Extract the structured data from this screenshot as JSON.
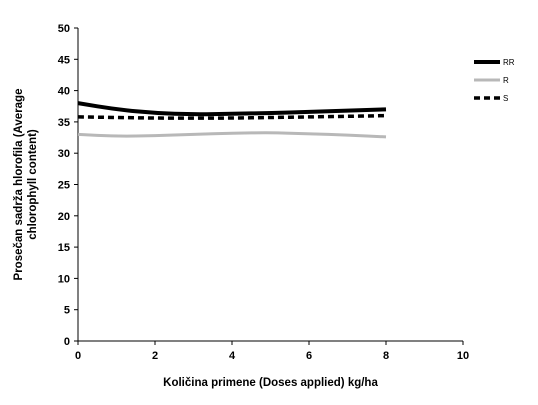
{
  "chart_data": {
    "type": "line",
    "title": "",
    "xlabel": "Količina primene (Doses applied) kg/ha",
    "ylabel_line1": "Prosečan sadržа hlorofila (Average",
    "ylabel_line2": "chlorophyll content)",
    "xlim": [
      0,
      10
    ],
    "ylim": [
      0,
      50
    ],
    "x_ticks": [
      "0",
      "2",
      "4",
      "6",
      "8",
      "10"
    ],
    "y_ticks": [
      "0",
      "5",
      "10",
      "15",
      "20",
      "25",
      "30",
      "35",
      "40",
      "45",
      "50"
    ],
    "grid": false,
    "legend_position": "right",
    "series": [
      {
        "name": "RR",
        "color": "#000000",
        "style": "solid-thick",
        "points": [
          [
            0,
            38.0
          ],
          [
            1,
            37.0
          ],
          [
            2,
            36.4
          ],
          [
            3,
            36.2
          ],
          [
            4,
            36.3
          ],
          [
            5,
            36.4
          ],
          [
            6,
            36.6
          ],
          [
            7,
            36.8
          ],
          [
            8,
            37.0
          ]
        ]
      },
      {
        "name": "R",
        "color": "#b8b8b8",
        "style": "solid-gray",
        "points": [
          [
            0,
            33.0
          ],
          [
            1,
            32.7
          ],
          [
            2,
            32.8
          ],
          [
            3,
            33.0
          ],
          [
            4,
            33.2
          ],
          [
            5,
            33.3
          ],
          [
            6,
            33.1
          ],
          [
            7,
            32.9
          ],
          [
            8,
            32.6
          ]
        ]
      },
      {
        "name": "S",
        "color": "#000000",
        "style": "dashed",
        "points": [
          [
            0,
            35.8
          ],
          [
            1,
            35.7
          ],
          [
            2,
            35.6
          ],
          [
            3,
            35.6
          ],
          [
            4,
            35.6
          ],
          [
            5,
            35.7
          ],
          [
            6,
            35.8
          ],
          [
            7,
            35.9
          ],
          [
            8,
            36.0
          ]
        ]
      }
    ]
  }
}
